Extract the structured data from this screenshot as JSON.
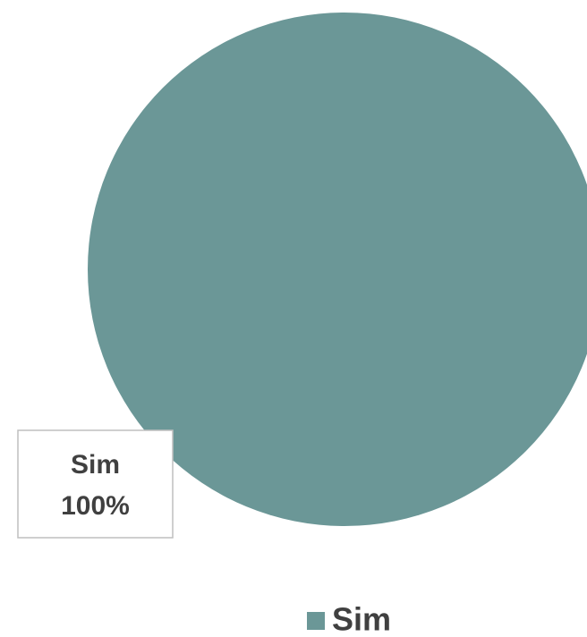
{
  "chart_data": {
    "type": "pie",
    "categories": [
      "Sim"
    ],
    "values": [
      100
    ],
    "value_labels": [
      "100%"
    ],
    "colors": [
      "#6b9797"
    ],
    "legend": "bottom"
  }
}
